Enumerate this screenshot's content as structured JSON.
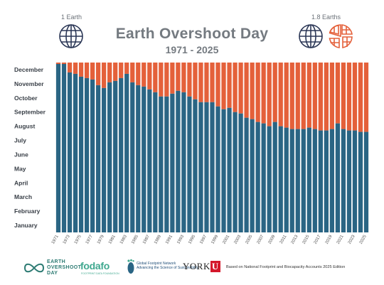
{
  "header": {
    "title": "Earth Overshoot Day",
    "subtitle": "1971 - 2025",
    "left_globe_label": "1 Earth",
    "right_globe_label": "1.8 Earths"
  },
  "colors": {
    "inside": "#2a6584",
    "overshoot": "#e4603a",
    "globe": "#2b3756",
    "globe_partial": "#e4603a"
  },
  "chart_data": {
    "type": "bar",
    "title": "Earth Overshoot Day",
    "subtitle": "1971 - 2025",
    "xlabel": "",
    "ylabel": "",
    "x_tick_labels": [
      "1971",
      "1973",
      "1975",
      "1977",
      "1979",
      "1981",
      "1983",
      "1985",
      "1987",
      "1989",
      "1991",
      "1993",
      "1995",
      "1997",
      "1999",
      "2001",
      "2003",
      "2005",
      "2007",
      "2009",
      "2011",
      "2013",
      "2015",
      "2017",
      "2019",
      "2021",
      "2023",
      "2025"
    ],
    "y_tick_labels": [
      "January",
      "February",
      "March",
      "April",
      "May",
      "June",
      "July",
      "August",
      "September",
      "October",
      "November",
      "December"
    ],
    "ylim_months": [
      0,
      12
    ],
    "series": [
      {
        "name": "",
        "color": "#2a6584",
        "unit": "months from January 1"
      },
      {
        "name": "",
        "color": "#e4603a",
        "unit": "remainder of year"
      }
    ],
    "categories": [
      1971,
      1972,
      1973,
      1974,
      1975,
      1976,
      1977,
      1978,
      1979,
      1980,
      1981,
      1982,
      1983,
      1984,
      1985,
      1986,
      1987,
      1988,
      1989,
      1990,
      1991,
      1992,
      1993,
      1994,
      1995,
      1996,
      1997,
      1998,
      1999,
      2000,
      2001,
      2002,
      2003,
      2004,
      2005,
      2006,
      2007,
      2008,
      2009,
      2010,
      2011,
      2012,
      2013,
      2014,
      2015,
      2016,
      2017,
      2018,
      2019,
      2020,
      2021,
      2022,
      2023,
      2024,
      2025
    ],
    "values": [
      11.9,
      11.9,
      11.3,
      11.2,
      11.0,
      10.9,
      10.8,
      10.4,
      10.2,
      10.6,
      10.7,
      10.9,
      11.2,
      10.6,
      10.4,
      10.3,
      10.1,
      9.9,
      9.6,
      9.6,
      9.8,
      10.0,
      9.9,
      9.6,
      9.4,
      9.2,
      9.2,
      9.2,
      8.9,
      8.7,
      8.8,
      8.5,
      8.4,
      8.1,
      8.0,
      7.8,
      7.7,
      7.5,
      7.8,
      7.5,
      7.4,
      7.3,
      7.3,
      7.3,
      7.4,
      7.3,
      7.2,
      7.2,
      7.3,
      7.7,
      7.3,
      7.2,
      7.2,
      7.1,
      7.1
    ]
  },
  "footer": {
    "eod_logo_line1": "EARTH",
    "eod_logo_line2": "OVERSHOOT",
    "eod_logo_line3": "DAY",
    "fodafo": "fodafo",
    "fodafo_sub": "FOOTPRINT DATA FOUNDATION",
    "gfn_line1": "Global Footprint Network",
    "gfn_line2": "Advancing the Science of Sustainability",
    "york": "YORK",
    "york_u": "U",
    "source": "Based on National Footprint and Biocapacity Accounts 2025 Edition"
  }
}
